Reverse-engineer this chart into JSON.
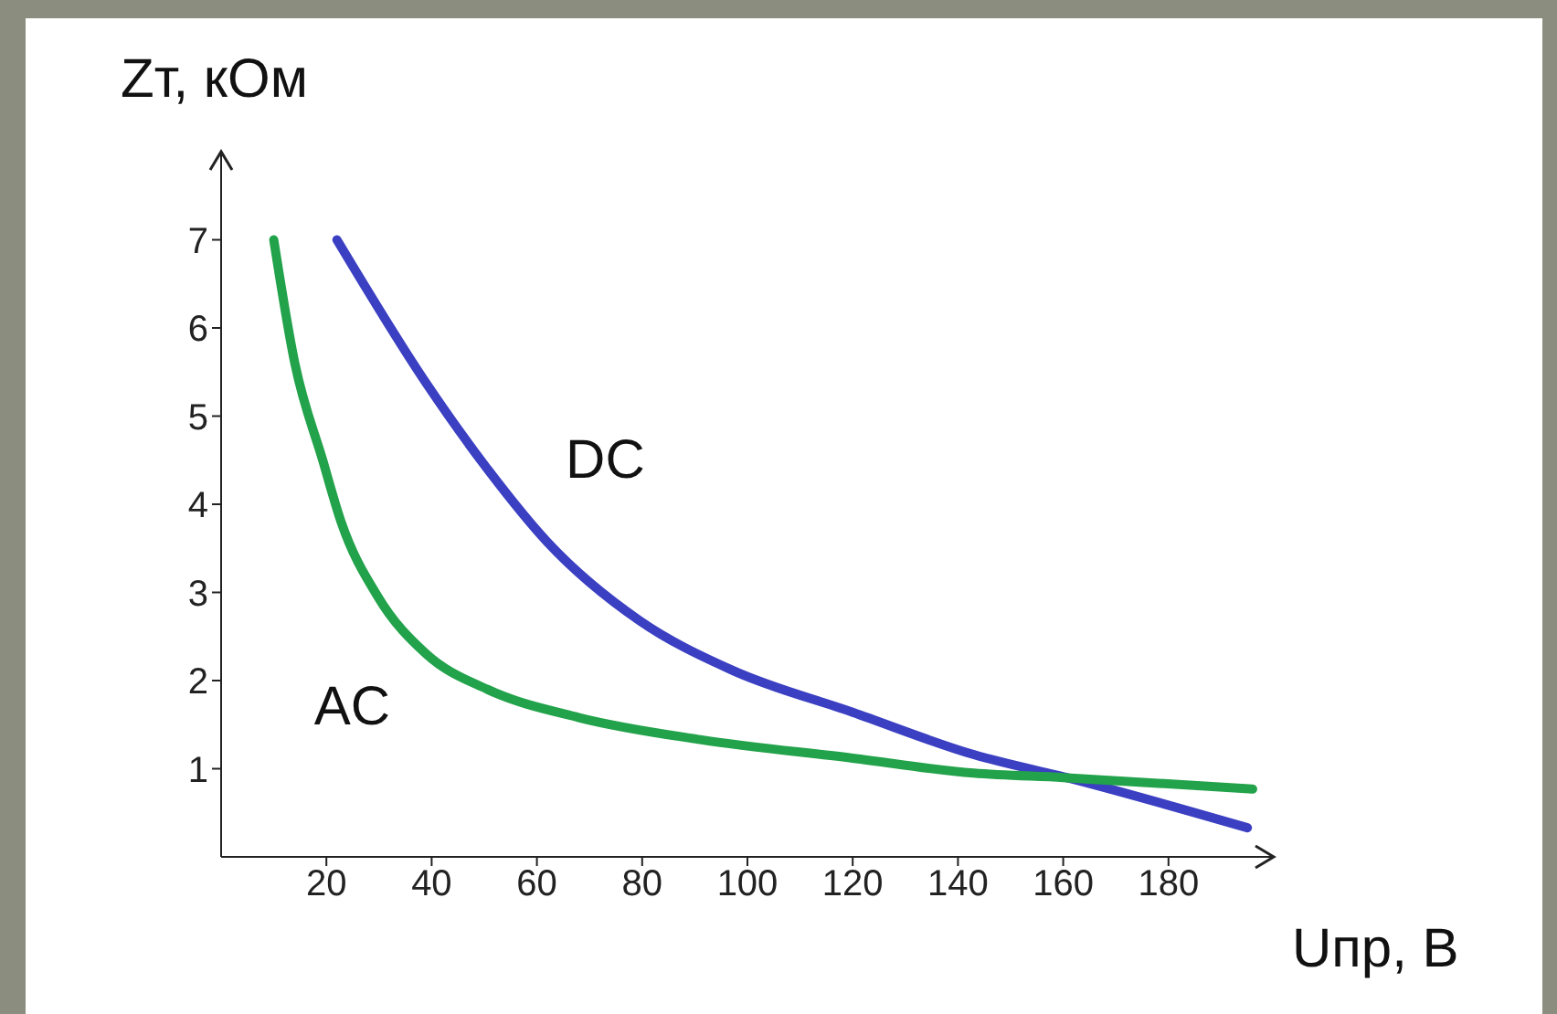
{
  "chart_data": {
    "type": "line",
    "xlabel": "Uпр, В",
    "ylabel": "Zт, кОм",
    "xlim": [
      0,
      200
    ],
    "ylim": [
      0,
      8
    ],
    "xticks": [
      20,
      40,
      60,
      80,
      100,
      120,
      140,
      160,
      180
    ],
    "yticks": [
      1,
      2,
      3,
      4,
      5,
      6,
      7
    ],
    "grid": false,
    "legend": false,
    "marker": "none",
    "line_style": "solid",
    "series": [
      {
        "name": "DC",
        "color": "#3b3fc2",
        "x": [
          22,
          39,
          50.6,
          62,
          79.5,
          97,
          120,
          143,
          162,
          195
        ],
        "values": [
          7,
          5.37,
          4.4,
          3.57,
          2.68,
          2.12,
          1.64,
          1.16,
          0.88,
          0.33
        ]
      },
      {
        "name": "AC",
        "color": "#22a24a",
        "x": [
          10,
          14,
          19.3,
          22.8,
          29.8,
          39,
          50.6,
          68,
          91,
          120,
          143,
          160,
          196
        ],
        "values": [
          7,
          5.6,
          4.5,
          3.8,
          2.95,
          2.3,
          1.9,
          1.58,
          1.33,
          1.12,
          0.95,
          0.9,
          0.77
        ]
      }
    ]
  }
}
